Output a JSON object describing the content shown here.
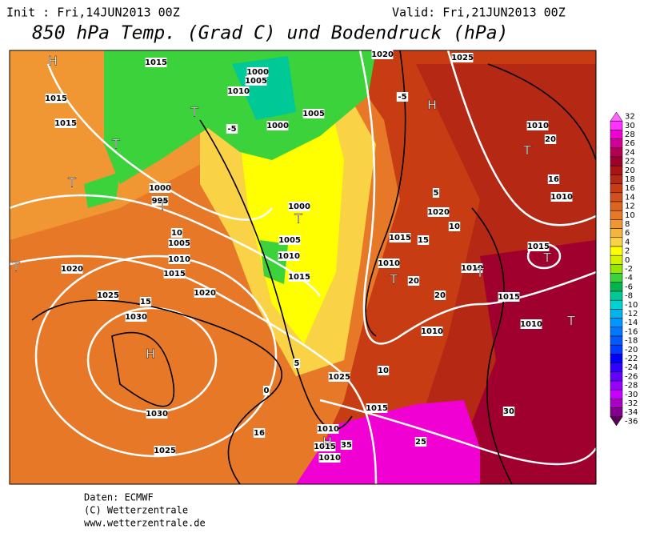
{
  "header": {
    "init": "Init : Fri,14JUN2013 00Z",
    "valid": "Valid: Fri,21JUN2013 00Z",
    "title": "850 hPa Temp. (Grad C) und Bodendruck (hPa)"
  },
  "colorbar": {
    "ticks": [
      32,
      30,
      28,
      26,
      24,
      22,
      20,
      18,
      16,
      14,
      12,
      10,
      8,
      6,
      4,
      2,
      0,
      -2,
      -4,
      -6,
      -8,
      -10,
      -12,
      -14,
      -16,
      -18,
      -20,
      -22,
      -24,
      -26,
      -28,
      -30,
      -32,
      -34,
      -36
    ],
    "colors": [
      "#ff66ff",
      "#ff33ff",
      "#f000d2",
      "#d20096",
      "#b40050",
      "#a0002d",
      "#aa1414",
      "#b42814",
      "#c83c14",
      "#d2501e",
      "#dc641e",
      "#e67828",
      "#f09632",
      "#f5b43c",
      "#fad246",
      "#ffff00",
      "#d2f000",
      "#96e600",
      "#3cd23c",
      "#00b450",
      "#00c896",
      "#00d2d2",
      "#00b4f0",
      "#0096ff",
      "#0078ff",
      "#005aff",
      "#003cff",
      "#0000ff",
      "#3200ff",
      "#6400ff",
      "#9600ff",
      "#c800ff",
      "#aa00c8",
      "#82008c",
      "#5a005a"
    ]
  },
  "map_labels": [
    "1015",
    "1005",
    "1000",
    "1010",
    "1000",
    "1005",
    "1020",
    "1025",
    "1015",
    "1015",
    "1010",
    "1010",
    "1000",
    "995",
    "1005",
    "1010",
    "1015",
    "1020",
    "1020",
    "1025",
    "1030",
    "1030",
    "1025",
    "1025",
    "1015",
    "1010",
    "1015",
    "1010",
    "1015",
    "1010",
    "1010",
    "1020",
    "1015",
    "1010",
    "1015",
    "1010",
    "1005",
    "1000",
    "1010",
    "1015",
    "20",
    "20",
    "20",
    "15",
    "15",
    "10",
    "10",
    "10",
    "5",
    "5",
    "0",
    "-5",
    "-5",
    "25",
    "30",
    "35",
    "16",
    "16"
  ],
  "markers": [
    "H",
    "H",
    "H",
    "H",
    "T",
    "T",
    "T",
    "T",
    "T",
    "T",
    "T",
    "T",
    "T",
    "T",
    "T"
  ],
  "footer": {
    "source": "Daten: ECMWF",
    "copyright": "(C) Wetterzentrale",
    "url": "www.wetterzentrale.de"
  }
}
